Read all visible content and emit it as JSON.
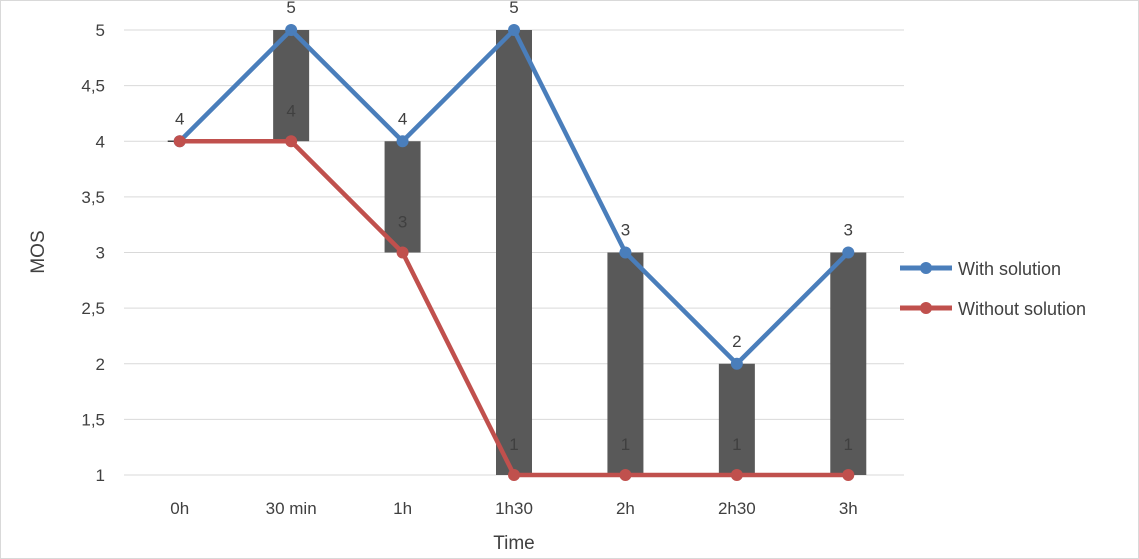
{
  "chart_data": {
    "type": "line",
    "title": "",
    "xlabel": "Time",
    "ylabel": "MOS",
    "categories": [
      "0h",
      "30 min",
      "1h",
      "1h30",
      "2h",
      "2h30",
      "3h"
    ],
    "ylim": [
      1,
      5
    ],
    "y_ticks": [
      "1",
      "1,5",
      "2",
      "2,5",
      "3",
      "3,5",
      "4",
      "4,5",
      "5"
    ],
    "grid": "horizontal",
    "legend_position": "right",
    "high_low_bars": true,
    "series": [
      {
        "name": "With solution",
        "values": [
          4,
          5,
          4,
          5,
          3,
          2,
          3
        ],
        "color": "#4a7ebb",
        "data_labels": [
          "4",
          "5",
          "4",
          "5",
          "3",
          "2",
          "3"
        ]
      },
      {
        "name": "Without solution",
        "values": [
          4,
          4,
          3,
          1,
          1,
          1,
          1
        ],
        "color": "#c0504d",
        "data_labels": [
          "4",
          "4",
          "3",
          "1",
          "1",
          "1",
          "1"
        ]
      }
    ],
    "bar_color": "#595959",
    "grid_color": "#d9d9d9"
  }
}
